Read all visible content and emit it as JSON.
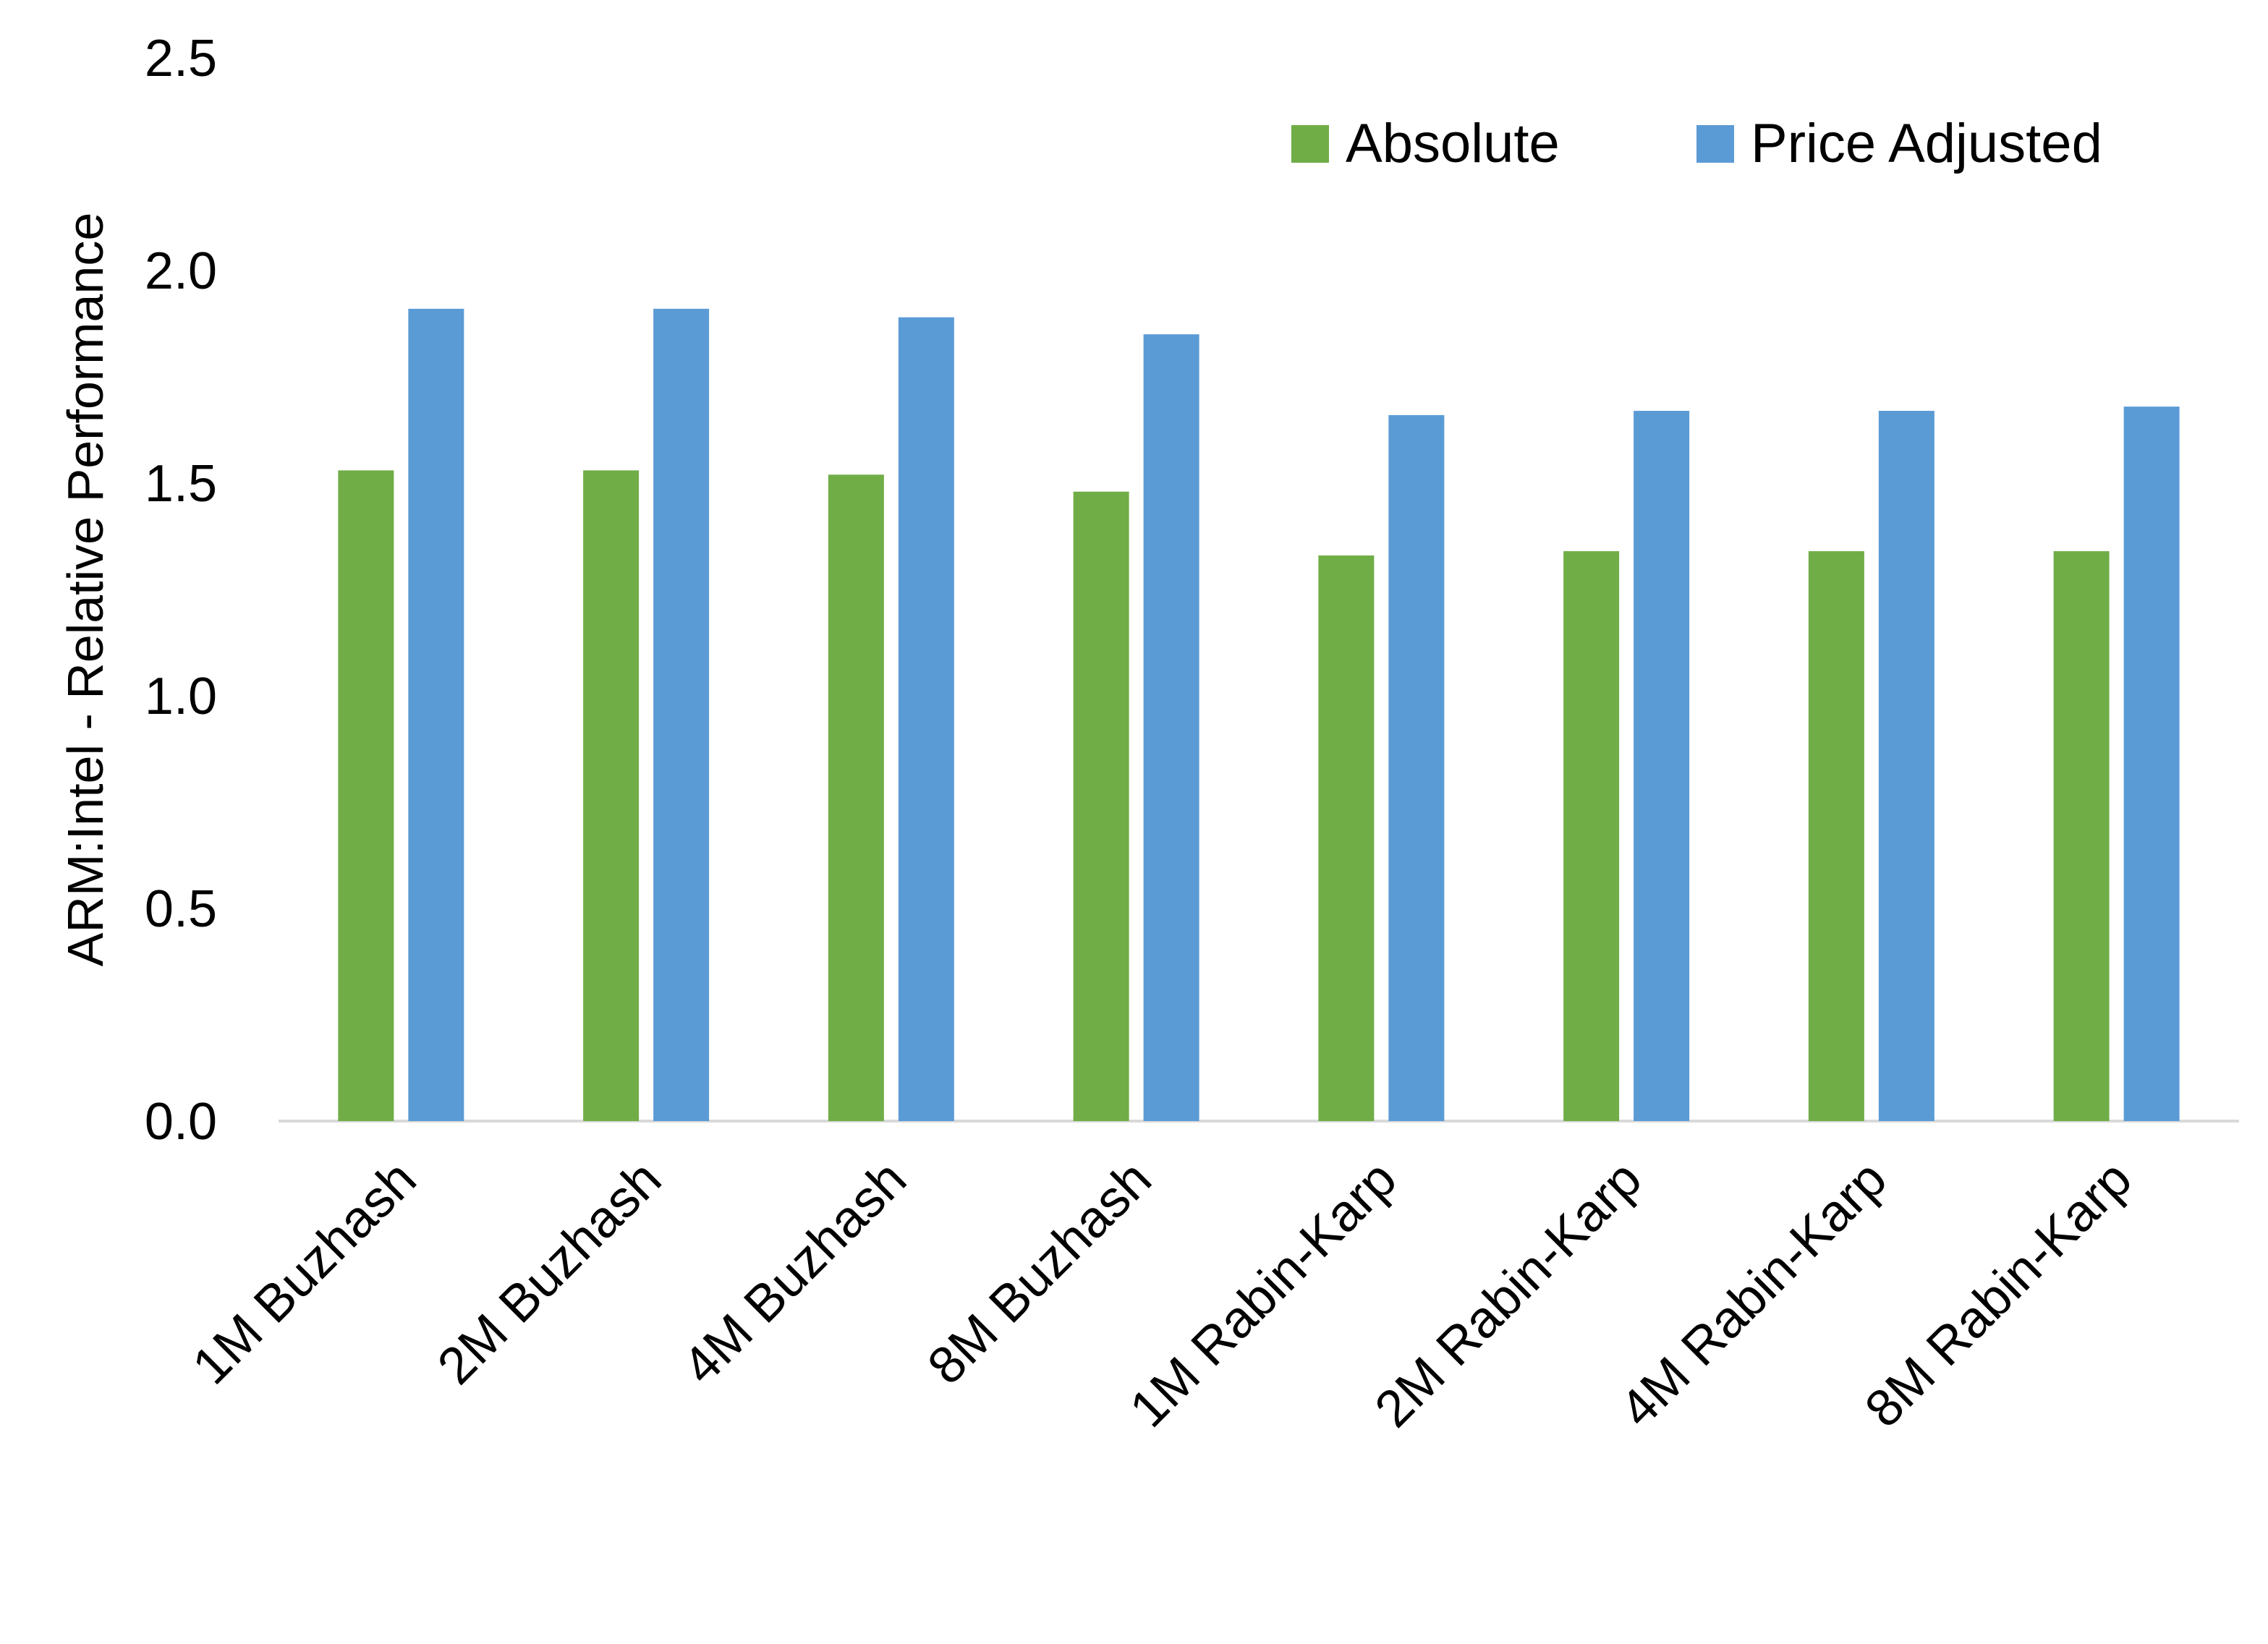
{
  "chart_data": {
    "type": "bar",
    "title": "",
    "xlabel": "",
    "ylabel": "ARM:Intel - Relative Performance",
    "ylim": [
      0,
      2.5
    ],
    "yticks": [
      "0.0",
      "0.5",
      "1.0",
      "1.5",
      "2.0",
      "2.5"
    ],
    "grid": false,
    "legend_position": "top-right",
    "categories": [
      "1M Buzhash",
      "2M Buzhash",
      "4M Buzhash",
      "8M Buzhash",
      "1M Rabin-Karp",
      "2M Rabin-Karp",
      "4M Rabin-Karp",
      "8M Rabin-Karp"
    ],
    "series": [
      {
        "name": "Absolute",
        "color": "#70AD47",
        "values": [
          1.53,
          1.53,
          1.52,
          1.48,
          1.33,
          1.34,
          1.34,
          1.34
        ]
      },
      {
        "name": "Price Adjusted",
        "color": "#5B9BD5",
        "values": [
          1.91,
          1.91,
          1.89,
          1.85,
          1.66,
          1.67,
          1.67,
          1.68
        ]
      }
    ]
  }
}
